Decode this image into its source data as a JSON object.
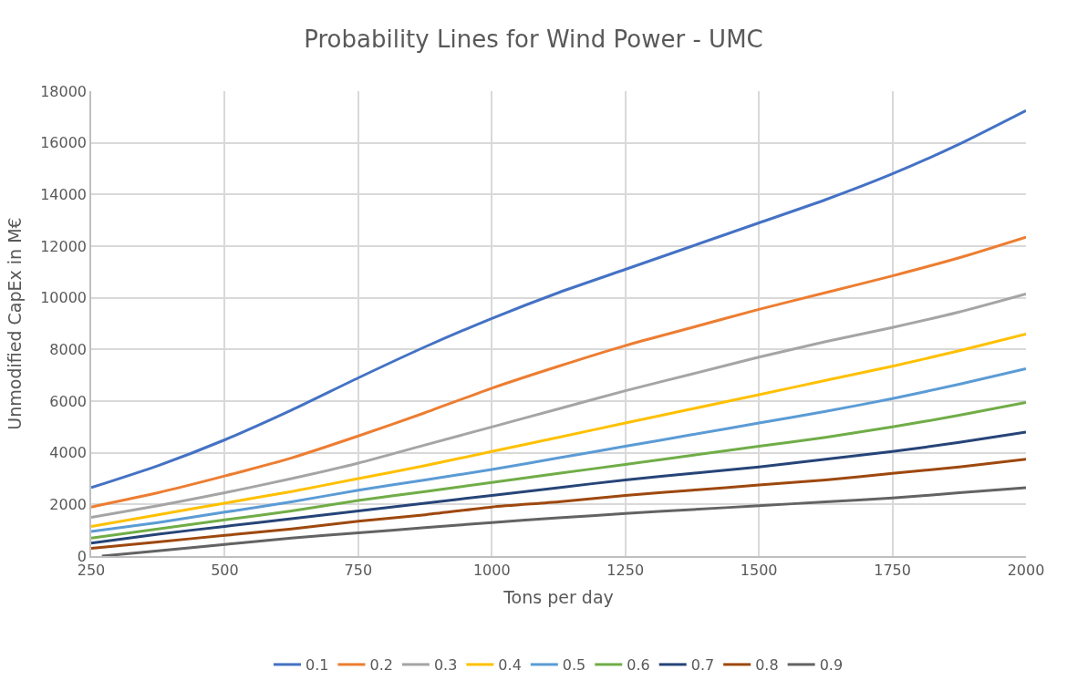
{
  "chart_data": {
    "type": "line",
    "title": "Probability Lines for Wind Power - UMC",
    "xlabel": "Tons per day",
    "ylabel": "Unmodified CapEx in M€",
    "x": [
      250,
      375,
      500,
      625,
      750,
      875,
      1000,
      1125,
      1250,
      1375,
      1500,
      1625,
      1750,
      1875,
      2000
    ],
    "series": [
      {
        "name": "0.1",
        "color": "#4472c4",
        "values": [
          2650,
          3500,
          4500,
          5650,
          6900,
          8100,
          9200,
          10200,
          11100,
          12000,
          12900,
          13800,
          14800,
          15950,
          17250
        ]
      },
      {
        "name": "0.2",
        "color": "#ed7d31",
        "values": [
          1900,
          2450,
          3100,
          3800,
          4650,
          5550,
          6500,
          7350,
          8150,
          8850,
          9550,
          10200,
          10850,
          11550,
          12350
        ]
      },
      {
        "name": "0.3",
        "color": "#a5a5a5",
        "values": [
          1500,
          1950,
          2450,
          3000,
          3600,
          4300,
          5000,
          5700,
          6400,
          7050,
          7700,
          8300,
          8850,
          9450,
          10150
        ]
      },
      {
        "name": "0.4",
        "color": "#ffc000",
        "values": [
          1150,
          1600,
          2050,
          2500,
          3000,
          3500,
          4050,
          4600,
          5150,
          5700,
          6250,
          6800,
          7350,
          7950,
          8600
        ]
      },
      {
        "name": "0.5",
        "color": "#5b9bd5",
        "values": [
          950,
          1300,
          1700,
          2100,
          2550,
          2950,
          3350,
          3800,
          4250,
          4700,
          5150,
          5600,
          6100,
          6650,
          7250
        ]
      },
      {
        "name": "0.6",
        "color": "#70ad47",
        "values": [
          700,
          1050,
          1400,
          1750,
          2150,
          2500,
          2850,
          3200,
          3550,
          3900,
          4250,
          4600,
          5000,
          5450,
          5950
        ]
      },
      {
        "name": "0.7",
        "color": "#264478",
        "values": [
          500,
          850,
          1150,
          1450,
          1750,
          2050,
          2350,
          2650,
          2950,
          3200,
          3450,
          3750,
          4050,
          4400,
          4800
        ]
      },
      {
        "name": "0.8",
        "color": "#9e480e",
        "values": [
          300,
          550,
          800,
          1050,
          1350,
          1600,
          1900,
          2100,
          2350,
          2550,
          2750,
          2950,
          3200,
          3450,
          3750
        ]
      },
      {
        "name": "0.9",
        "color": "#636363",
        "x": [
          270,
          375,
          500,
          625,
          750,
          875,
          1000,
          1125,
          1250,
          1375,
          1500,
          1625,
          1750,
          1875,
          2000
        ],
        "values": [
          0,
          200,
          450,
          700,
          900,
          1100,
          1300,
          1480,
          1650,
          1800,
          1950,
          2100,
          2250,
          2450,
          2650
        ]
      }
    ],
    "xlim": [
      250,
      2000
    ],
    "xticks": [
      250,
      500,
      750,
      1000,
      1250,
      1500,
      1750,
      2000
    ],
    "ylim": [
      0,
      18000
    ],
    "yticks": [
      0,
      2000,
      4000,
      6000,
      8000,
      10000,
      12000,
      14000,
      16000,
      18000
    ],
    "grid": true,
    "legend": "bottom",
    "marker": "none",
    "line_style": "solid"
  }
}
